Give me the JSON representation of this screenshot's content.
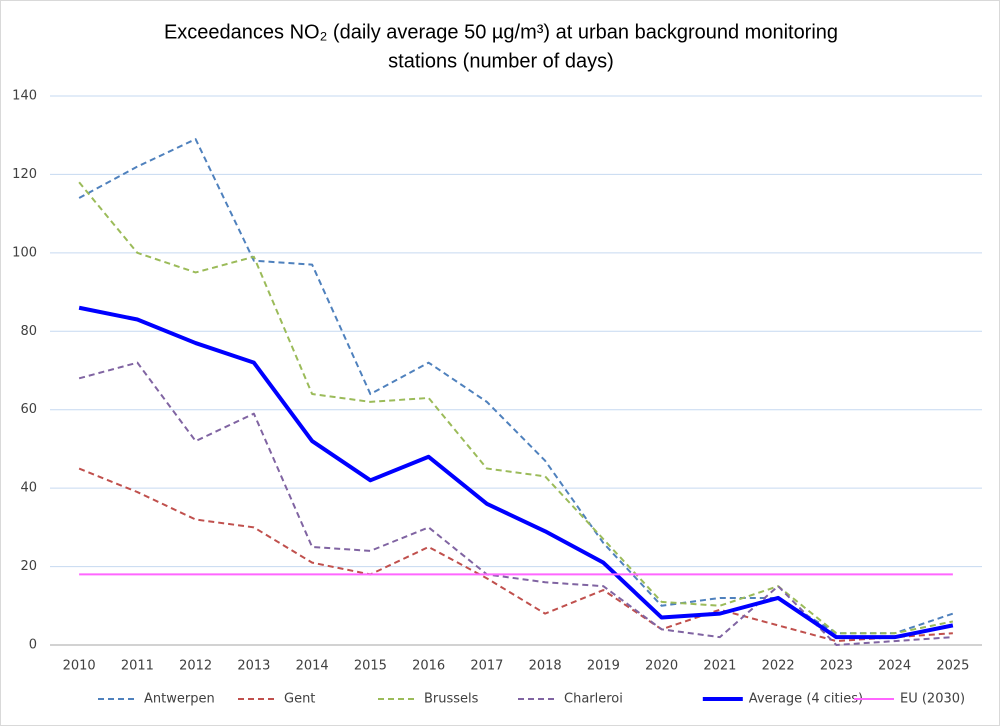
{
  "chart_data": {
    "type": "line",
    "title": [
      "Exceedances NO₂ (daily average 50 µg/m³) at urban background monitoring",
      "stations (number of days)"
    ],
    "categories": [
      "2010",
      "2011",
      "2012",
      "2013",
      "2014",
      "2015",
      "2016",
      "2017",
      "2018",
      "2019",
      "2020",
      "2021",
      "2022",
      "2023",
      "2024",
      "2025"
    ],
    "series": [
      {
        "name": "Antwerpen",
        "color": "#4f81bd",
        "dashed": true,
        "width": 2,
        "values": [
          114,
          122,
          129,
          98,
          97,
          64,
          72,
          62,
          47,
          26,
          10,
          12,
          12,
          3,
          3,
          8
        ]
      },
      {
        "name": "Gent",
        "color": "#c0504d",
        "dashed": true,
        "width": 2,
        "values": [
          45,
          39,
          32,
          30,
          21,
          18,
          25,
          17,
          8,
          14,
          4,
          9,
          5,
          1,
          2,
          3
        ]
      },
      {
        "name": "Brussels",
        "color": "#9bbb59",
        "dashed": true,
        "width": 2,
        "values": [
          118,
          100,
          95,
          99,
          64,
          62,
          63,
          45,
          43,
          27,
          11,
          10,
          15,
          3,
          3,
          6
        ]
      },
      {
        "name": "Charleroi",
        "color": "#8064a2",
        "dashed": true,
        "width": 2,
        "values": [
          68,
          72,
          52,
          59,
          25,
          24,
          30,
          18,
          16,
          15,
          4,
          2,
          15,
          0,
          1,
          2
        ]
      },
      {
        "name": "Average (4 cities)",
        "color": "#0000ff",
        "dashed": false,
        "width": 4,
        "values": [
          86,
          83,
          77,
          72,
          52,
          42,
          48,
          36,
          29,
          21,
          7,
          8,
          12,
          2,
          2,
          5
        ]
      },
      {
        "name": "EU (2030)",
        "color": "#ff66ff",
        "dashed": false,
        "width": 2,
        "values": [
          18,
          18,
          18,
          18,
          18,
          18,
          18,
          18,
          18,
          18,
          18,
          18,
          18,
          18,
          18,
          18
        ]
      }
    ],
    "ylim": [
      0,
      140
    ],
    "yticks": [
      0,
      20,
      40,
      60,
      80,
      100,
      120,
      140
    ],
    "grid": true,
    "legend": "bottom"
  }
}
